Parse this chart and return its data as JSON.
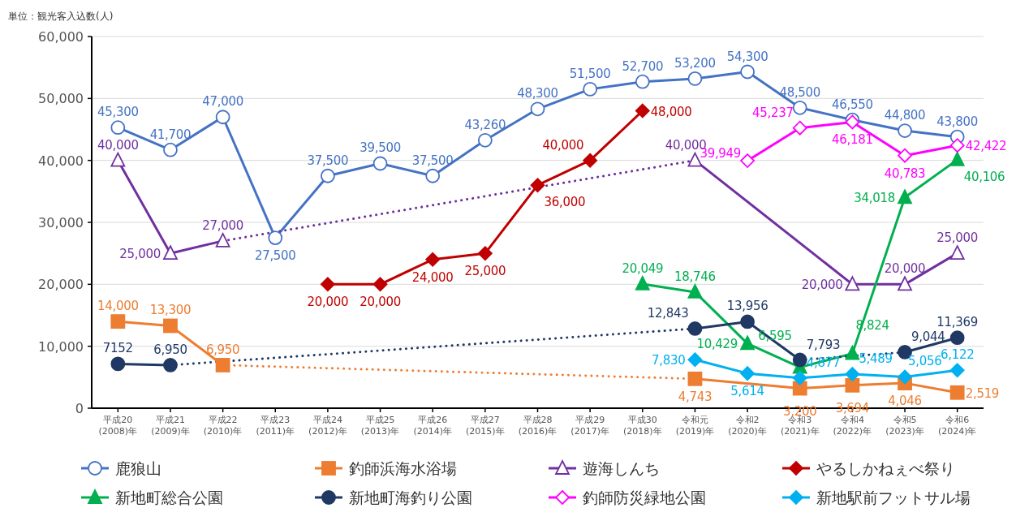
{
  "chart_data": {
    "type": "line",
    "ylabel": "単位：観光客入込数(人)",
    "categories": [
      "平成20\n(2008)年",
      "平成21\n(2009)年",
      "平成22\n(2010)年",
      "平成23\n(2011)年",
      "平成24\n(2012)年",
      "平成25\n(2013)年",
      "平成26\n(2014)年",
      "平成27\n(2015)年",
      "平成28\n(2016)年",
      "平成29\n(2017)年",
      "平成30\n(2018)年",
      "令和元\n(2019)年",
      "令和2\n(2020)年",
      "令和3\n(2021)年",
      "令和4\n(2022)年",
      "令和5\n(2023)年",
      "令和6\n(2024)年"
    ],
    "ylim": [
      0,
      60000
    ],
    "yticks": [
      {
        "value": 0,
        "label": "0"
      },
      {
        "value": 10000,
        "label": "10,000"
      },
      {
        "value": 20000,
        "label": "20,000"
      },
      {
        "value": 30000,
        "label": "30,000"
      },
      {
        "value": 40000,
        "label": "40,000"
      },
      {
        "value": 50000,
        "label": "50,000"
      },
      {
        "value": 60000,
        "label": "60,000"
      }
    ],
    "grid": "y",
    "legend": "bottom",
    "line_style": "solid",
    "series": [
      {
        "name": "鹿狼山",
        "color": "#4472c4",
        "marker": "circle",
        "values": [
          45300,
          41700,
          47000,
          27500,
          37500,
          39500,
          37500,
          43260,
          48300,
          51500,
          52700,
          53200,
          54300,
          48500,
          46550,
          44800,
          43800
        ],
        "value_labels": [
          "45,300",
          "41,700",
          "47,000",
          "27,500",
          "37,500",
          "39,500",
          "37,500",
          "43,260",
          "48,300",
          "51,500",
          "52,700",
          "53,200",
          "54,300",
          "48,500",
          "46,550",
          "44,800",
          "43,800"
        ]
      },
      {
        "name": "釣師浜海水浴場",
        "color": "#ed7d31",
        "marker": "square",
        "values": [
          14000,
          13300,
          6950,
          null,
          null,
          null,
          null,
          null,
          null,
          null,
          null,
          4743,
          null,
          3200,
          3694,
          4046,
          2519
        ],
        "value_labels": [
          "14,000",
          "13,300",
          "6,950",
          null,
          null,
          null,
          null,
          null,
          null,
          null,
          null,
          "4,743",
          null,
          "3,200",
          "3,694",
          "4,046",
          "2,519"
        ]
      },
      {
        "name": "遊海しんち",
        "color": "#7030a0",
        "marker": "triangle",
        "values": [
          40000,
          25000,
          27000,
          null,
          null,
          null,
          null,
          null,
          null,
          null,
          null,
          40000,
          null,
          null,
          20000,
          20000,
          25000
        ],
        "value_labels": [
          "40,000",
          "25,000",
          "27,000",
          null,
          null,
          null,
          null,
          null,
          null,
          null,
          null,
          "40,000",
          null,
          null,
          "20,000",
          "20,000",
          "25,000"
        ]
      },
      {
        "name": "やるしかねぇべ祭り",
        "color": "#c00000",
        "marker": "diamond",
        "values": [
          null,
          null,
          null,
          null,
          20000,
          20000,
          24000,
          25000,
          36000,
          40000,
          48000,
          null,
          null,
          null,
          null,
          null,
          null
        ],
        "value_labels": [
          null,
          null,
          null,
          null,
          "20,000",
          "20,000",
          "24,000",
          "25,000",
          "36,000",
          "40,000",
          "48,000",
          null,
          null,
          null,
          null,
          null,
          null
        ]
      },
      {
        "name": "新地町総合公園",
        "color": "#00b050",
        "marker": "triangle",
        "values": [
          null,
          null,
          null,
          null,
          null,
          null,
          null,
          null,
          null,
          null,
          20049,
          18746,
          10429,
          6595,
          8824,
          34018,
          40106
        ],
        "value_labels": [
          null,
          null,
          null,
          null,
          null,
          null,
          null,
          null,
          null,
          null,
          "20,049",
          "18,746",
          "10,429",
          "6,595",
          "8,824",
          "34,018",
          "40,106"
        ]
      },
      {
        "name": "新地町海釣り公園",
        "color": "#1f3864",
        "marker": "circle",
        "values": [
          7152,
          6950,
          null,
          null,
          null,
          null,
          null,
          null,
          null,
          null,
          null,
          12843,
          13956,
          7793,
          null,
          9044,
          11369
        ],
        "value_labels": [
          "7152",
          "6,950",
          null,
          null,
          null,
          null,
          null,
          null,
          null,
          null,
          null,
          "12,843",
          "13,956",
          "7,793",
          null,
          "9,044",
          "11,369"
        ]
      },
      {
        "name": "釣師防災緑地公園",
        "color": "#ff00ff",
        "marker": "diamond",
        "values": [
          null,
          null,
          null,
          null,
          null,
          null,
          null,
          null,
          null,
          null,
          null,
          null,
          39949,
          45237,
          46181,
          40783,
          42422
        ],
        "value_labels": [
          null,
          null,
          null,
          null,
          null,
          null,
          null,
          null,
          null,
          null,
          null,
          null,
          "39,949",
          "45,237",
          "46,181",
          "40,783",
          "42,422"
        ]
      },
      {
        "name": "新地駅前フットサル場",
        "color": "#00b0f0",
        "marker": "diamond",
        "values": [
          null,
          null,
          null,
          null,
          null,
          null,
          null,
          null,
          null,
          null,
          null,
          7830,
          5614,
          4877,
          5489,
          5056,
          6122
        ],
        "value_labels": [
          null,
          null,
          null,
          null,
          null,
          null,
          null,
          null,
          null,
          null,
          null,
          "7,830",
          "5,614",
          "4,877",
          "5,489",
          "5,056",
          "6,122"
        ]
      }
    ]
  }
}
